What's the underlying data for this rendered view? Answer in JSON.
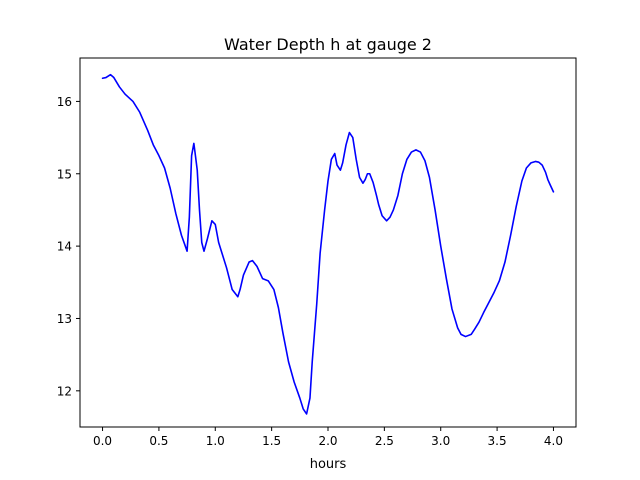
{
  "chart_data": {
    "type": "line",
    "title": "Water Depth h at gauge 2",
    "xlabel": "hours",
    "ylabel": "",
    "xlim": [
      -0.2,
      4.2
    ],
    "ylim": [
      11.5,
      16.6
    ],
    "xticks": [
      0.0,
      0.5,
      1.0,
      1.5,
      2.0,
      2.5,
      3.0,
      3.5,
      4.0
    ],
    "xtick_labels": [
      "0.0",
      "0.5",
      "1.0",
      "1.5",
      "2.0",
      "2.5",
      "3.0",
      "3.5",
      "4.0"
    ],
    "yticks": [
      12,
      13,
      14,
      15,
      16
    ],
    "ytick_labels": [
      "12",
      "13",
      "14",
      "15",
      "16"
    ],
    "grid": false,
    "series": [
      {
        "color": "#0000ff",
        "x": [
          0.0,
          0.03,
          0.07,
          0.1,
          0.15,
          0.2,
          0.27,
          0.33,
          0.4,
          0.45,
          0.5,
          0.55,
          0.6,
          0.65,
          0.7,
          0.75,
          0.77,
          0.79,
          0.81,
          0.82,
          0.84,
          0.86,
          0.88,
          0.9,
          0.93,
          0.97,
          1.0,
          1.03,
          1.05,
          1.1,
          1.15,
          1.2,
          1.22,
          1.25,
          1.3,
          1.33,
          1.37,
          1.42,
          1.47,
          1.52,
          1.56,
          1.6,
          1.65,
          1.7,
          1.75,
          1.78,
          1.81,
          1.84,
          1.86,
          1.88,
          1.9,
          1.93,
          1.97,
          2.0,
          2.03,
          2.06,
          2.08,
          2.11,
          2.13,
          2.16,
          2.19,
          2.22,
          2.25,
          2.28,
          2.31,
          2.33,
          2.35,
          2.37,
          2.4,
          2.43,
          2.45,
          2.48,
          2.52,
          2.55,
          2.58,
          2.62,
          2.66,
          2.7,
          2.74,
          2.78,
          2.82,
          2.86,
          2.9,
          2.95,
          3.0,
          3.05,
          3.1,
          3.15,
          3.18,
          3.22,
          3.27,
          3.3,
          3.34,
          3.38,
          3.42,
          3.47,
          3.52,
          3.57,
          3.62,
          3.67,
          3.72,
          3.76,
          3.8,
          3.84,
          3.87,
          3.9,
          3.93,
          3.95,
          3.97,
          4.0
        ],
        "y": [
          16.32,
          16.33,
          16.37,
          16.33,
          16.2,
          16.1,
          16.0,
          15.85,
          15.6,
          15.4,
          15.25,
          15.08,
          14.8,
          14.45,
          14.15,
          13.93,
          14.4,
          15.25,
          15.42,
          15.3,
          15.05,
          14.5,
          14.05,
          13.93,
          14.1,
          14.35,
          14.3,
          14.05,
          13.95,
          13.7,
          13.4,
          13.3,
          13.4,
          13.6,
          13.78,
          13.8,
          13.72,
          13.55,
          13.52,
          13.4,
          13.15,
          12.8,
          12.4,
          12.12,
          11.9,
          11.75,
          11.68,
          11.9,
          12.4,
          12.8,
          13.2,
          13.9,
          14.5,
          14.9,
          15.2,
          15.28,
          15.12,
          15.05,
          15.15,
          15.4,
          15.57,
          15.5,
          15.2,
          14.95,
          14.87,
          14.92,
          15.0,
          15.0,
          14.88,
          14.7,
          14.57,
          14.42,
          14.35,
          14.4,
          14.5,
          14.7,
          15.0,
          15.2,
          15.3,
          15.33,
          15.3,
          15.18,
          14.95,
          14.5,
          14.0,
          13.55,
          13.13,
          12.87,
          12.78,
          12.75,
          12.78,
          12.85,
          12.95,
          13.08,
          13.2,
          13.35,
          13.52,
          13.78,
          14.15,
          14.55,
          14.9,
          15.08,
          15.15,
          15.17,
          15.16,
          15.12,
          15.02,
          14.92,
          14.85,
          14.75
        ]
      }
    ]
  }
}
